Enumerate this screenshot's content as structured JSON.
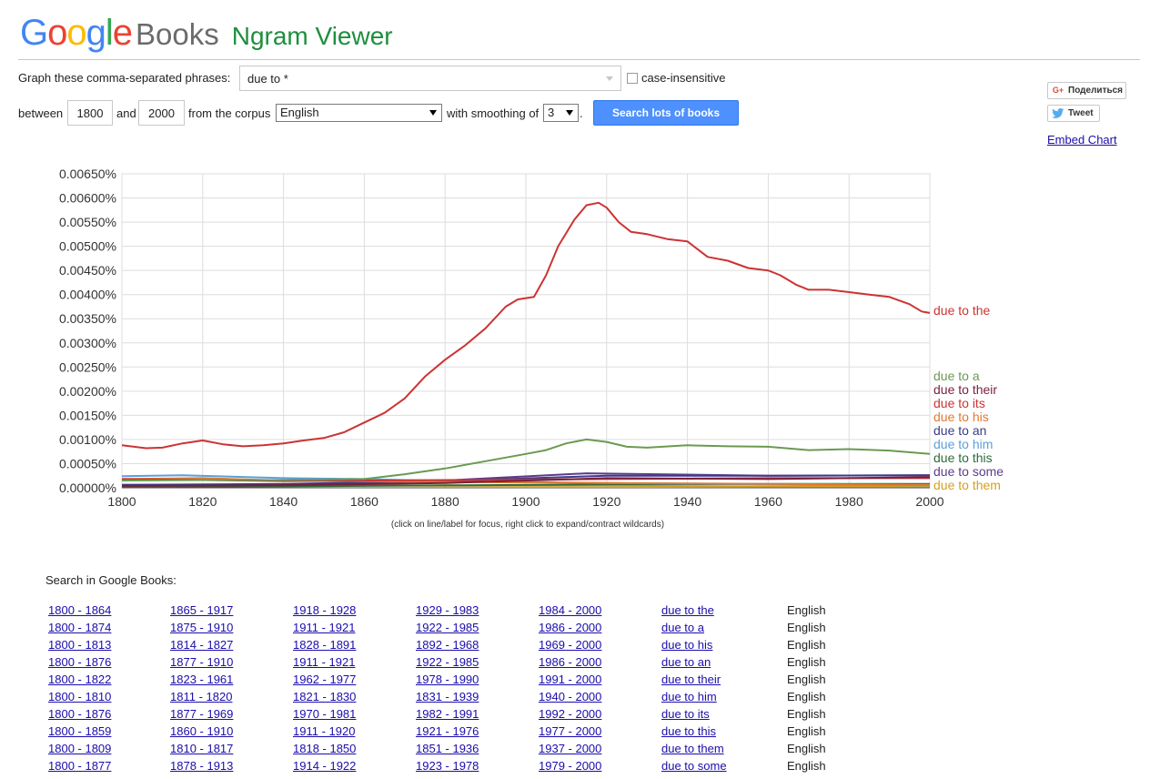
{
  "header": {
    "logo_google": [
      "G",
      "o",
      "o",
      "g",
      "l",
      "e"
    ],
    "logo_colors": [
      "#4285f4",
      "#ea4335",
      "#fbbc05",
      "#4285f4",
      "#34a853",
      "#ea4335"
    ],
    "logo_books": "Books",
    "app_title": "Ngram Viewer"
  },
  "form": {
    "phrases_label": "Graph these comma-separated phrases:",
    "phrases_value": "due to *",
    "case_label": "case-insensitive",
    "between_label": "between",
    "start_year": "1800",
    "and_label": "and",
    "end_year": "2000",
    "corpus_label": "from the corpus",
    "corpus_value": "English",
    "smoothing_label": "with smoothing of",
    "smoothing_value": "3",
    "period": ".",
    "search_button": "Search lots of books"
  },
  "social": {
    "share_label": "Поделиться",
    "share_icon": "G+",
    "tweet_label": "Tweet",
    "embed_label": "Embed Chart"
  },
  "chart_data": {
    "type": "line",
    "xlim": [
      1800,
      2000
    ],
    "ylim": [
      0,
      0.0065
    ],
    "x_ticks": [
      "1800",
      "1820",
      "1840",
      "1860",
      "1880",
      "1900",
      "1920",
      "1940",
      "1960",
      "1980",
      "2000"
    ],
    "y_ticks": [
      "0.00000%",
      "0.00050%",
      "0.00100%",
      "0.00150%",
      "0.00200%",
      "0.00250%",
      "0.00300%",
      "0.00350%",
      "0.00400%",
      "0.00450%",
      "0.00500%",
      "0.00550%",
      "0.00600%",
      "0.00650%"
    ],
    "grid": true,
    "series": [
      {
        "name": "due to the",
        "color": "#cc3333",
        "x": [
          1800,
          1803,
          1806,
          1810,
          1815,
          1820,
          1825,
          1830,
          1835,
          1840,
          1845,
          1850,
          1855,
          1860,
          1865,
          1870,
          1875,
          1880,
          1885,
          1890,
          1895,
          1898,
          1902,
          1905,
          1908,
          1912,
          1915,
          1918,
          1920,
          1923,
          1926,
          1930,
          1935,
          1940,
          1945,
          1950,
          1955,
          1960,
          1963,
          1967,
          1970,
          1975,
          1980,
          1985,
          1990,
          1995,
          1998,
          2000
        ],
        "values": [
          0.00088,
          0.00085,
          0.00082,
          0.00083,
          0.00092,
          0.00098,
          0.0009,
          0.00086,
          0.00088,
          0.00092,
          0.00098,
          0.00103,
          0.00115,
          0.00135,
          0.00155,
          0.00185,
          0.0023,
          0.00265,
          0.00295,
          0.0033,
          0.00375,
          0.0039,
          0.00395,
          0.0044,
          0.005,
          0.00555,
          0.00585,
          0.0059,
          0.0058,
          0.0055,
          0.0053,
          0.00525,
          0.00515,
          0.0051,
          0.00478,
          0.0047,
          0.00455,
          0.0045,
          0.0044,
          0.0042,
          0.0041,
          0.0041,
          0.00405,
          0.004,
          0.00395,
          0.0038,
          0.00365,
          0.00362
        ]
      },
      {
        "name": "due to a",
        "color": "#6a9a52",
        "x": [
          1800,
          1820,
          1840,
          1860,
          1870,
          1880,
          1890,
          1900,
          1905,
          1910,
          1915,
          1920,
          1925,
          1930,
          1940,
          1950,
          1960,
          1970,
          1980,
          1990,
          2000
        ],
        "values": [
          0.00015,
          0.00016,
          0.00016,
          0.00018,
          0.00028,
          0.0004,
          0.00055,
          0.0007,
          0.00078,
          0.00092,
          0.001,
          0.00095,
          0.00085,
          0.00083,
          0.00088,
          0.00086,
          0.00085,
          0.00078,
          0.0008,
          0.00077,
          0.0007
        ]
      },
      {
        "name": "due to their",
        "color": "#7b1f3a",
        "x": [
          1800,
          1840,
          1880,
          1920,
          1960,
          2000
        ],
        "values": [
          4e-05,
          5e-05,
          0.0001,
          0.0002,
          0.00018,
          0.00022
        ]
      },
      {
        "name": "due to its",
        "color": "#cc3333",
        "x": [
          1800,
          1840,
          1880,
          1920,
          1960,
          2000
        ],
        "values": [
          0.00018,
          0.00014,
          0.00016,
          0.00018,
          0.0002,
          0.0002
        ]
      },
      {
        "name": "due to his",
        "color": "#e07a30",
        "x": [
          1800,
          1820,
          1840,
          1880,
          1920,
          1960,
          2000
        ],
        "values": [
          0.00018,
          0.0002,
          0.00015,
          0.00012,
          0.0001,
          8e-05,
          6e-05
        ]
      },
      {
        "name": "due to an",
        "color": "#3b3b8a",
        "x": [
          1800,
          1840,
          1880,
          1920,
          1960,
          2000
        ],
        "values": [
          6e-05,
          8e-05,
          0.00014,
          0.00025,
          0.00025,
          0.00026
        ]
      },
      {
        "name": "due to him",
        "color": "#5aa0dd",
        "x": [
          1800,
          1815,
          1840,
          1860,
          1880,
          1920,
          1960,
          2000
        ],
        "values": [
          0.00024,
          0.00026,
          0.0002,
          0.00018,
          0.00014,
          0.0001,
          7e-05,
          5e-05
        ]
      },
      {
        "name": "due to this",
        "color": "#2f6b3a",
        "x": [
          1800,
          1840,
          1880,
          1920,
          1960,
          2000
        ],
        "values": [
          2e-05,
          3e-05,
          5e-05,
          7e-05,
          8e-05,
          8e-05
        ]
      },
      {
        "name": "due to some",
        "color": "#5b3c8c",
        "x": [
          1800,
          1840,
          1880,
          1915,
          1960,
          2000
        ],
        "values": [
          5e-05,
          6e-05,
          0.00015,
          0.0003,
          0.00025,
          0.00026
        ]
      },
      {
        "name": "due to them",
        "color": "#d4a020",
        "x": [
          1800,
          1840,
          1880,
          1920,
          1960,
          2000
        ],
        "values": [
          6e-05,
          5e-05,
          4e-05,
          4e-05,
          3e-05,
          3e-05
        ]
      }
    ]
  },
  "hint": "(click on line/label for focus, right click to expand/contract wildcards)",
  "search": {
    "title": "Search in Google Books:",
    "rows": [
      [
        "1800 - 1864",
        "1865 - 1917",
        "1918 - 1928",
        "1929 - 1983",
        "1984 - 2000",
        "due to the",
        "English"
      ],
      [
        "1800 - 1874",
        "1875 - 1910",
        "1911 - 1921",
        "1922 - 1985",
        "1986 - 2000",
        "due to a",
        "English"
      ],
      [
        "1800 - 1813",
        "1814 - 1827",
        "1828 - 1891",
        "1892 - 1968",
        "1969 - 2000",
        "due to his",
        "English"
      ],
      [
        "1800 - 1876",
        "1877 - 1910",
        "1911 - 1921",
        "1922 - 1985",
        "1986 - 2000",
        "due to an",
        "English"
      ],
      [
        "1800 - 1822",
        "1823 - 1961",
        "1962 - 1977",
        "1978 - 1990",
        "1991 - 2000",
        "due to their",
        "English"
      ],
      [
        "1800 - 1810",
        "1811 - 1820",
        "1821 - 1830",
        "1831 - 1939",
        "1940 - 2000",
        "due to him",
        "English"
      ],
      [
        "1800 - 1876",
        "1877 - 1969",
        "1970 - 1981",
        "1982 - 1991",
        "1992 - 2000",
        "due to its",
        "English"
      ],
      [
        "1800 - 1859",
        "1860 - 1910",
        "1911 - 1920",
        "1921 - 1976",
        "1977 - 2000",
        "due to this",
        "English"
      ],
      [
        "1800 - 1809",
        "1810 - 1817",
        "1818 - 1850",
        "1851 - 1936",
        "1937 - 2000",
        "due to them",
        "English"
      ],
      [
        "1800 - 1877",
        "1878 - 1913",
        "1914 - 1922",
        "1923 - 1978",
        "1979 - 2000",
        "due to some",
        "English"
      ]
    ]
  }
}
